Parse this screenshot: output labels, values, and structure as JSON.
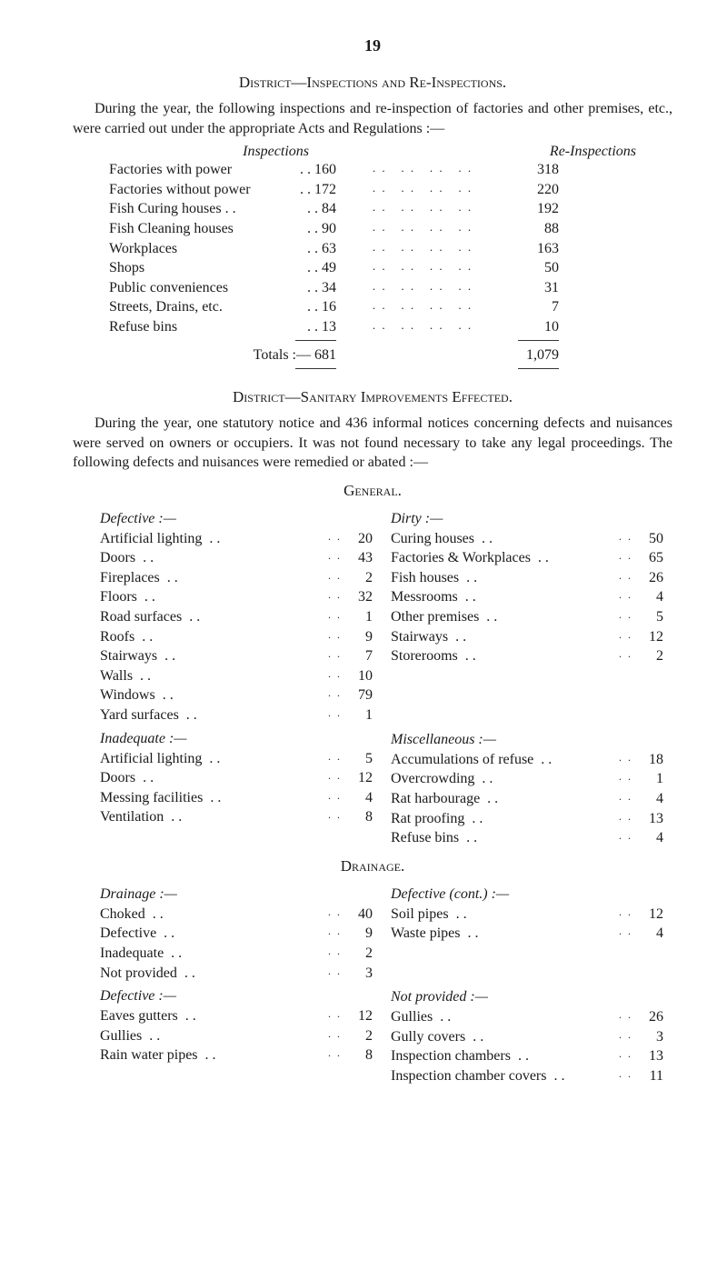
{
  "page_number": "19",
  "section1": {
    "heading": "District—Inspections and Re-Inspections.",
    "para": "During the year, the following inspections and re-inspection of factories and other premises, etc., were carried out under the appropriate Acts and Regulations :—",
    "col1": "Inspections",
    "col2": "Re-Inspections",
    "rows": [
      {
        "label": "Factories with power",
        "v1": "160",
        "v2": "318"
      },
      {
        "label": "Factories without power",
        "v1": "172",
        "v2": "220"
      },
      {
        "label": "Fish Curing houses . .",
        "v1": "84",
        "v2": "192"
      },
      {
        "label": "Fish Cleaning houses",
        "v1": "90",
        "v2": "88"
      },
      {
        "label": "Workplaces",
        "v1": "63",
        "v2": "163"
      },
      {
        "label": "Shops",
        "v1": "49",
        "v2": "50"
      },
      {
        "label": "Public conveniences",
        "v1": "34",
        "v2": "31"
      },
      {
        "label": "Streets, Drains, etc.",
        "v1": "16",
        "v2": "7"
      },
      {
        "label": "Refuse bins",
        "v1": "13",
        "v2": "10"
      }
    ],
    "totals_label": "Totals :— 681",
    "totals_v2": "1,079"
  },
  "section2": {
    "heading": "District—Sanitary Improvements Effected.",
    "para": "During the year, one statutory notice and 436 informal notices concerning defects and nuisances were served on owners or occupiers. It was not found necessary to take any legal proceedings. The following defects and nuisances were remedied or abated :—"
  },
  "general": {
    "heading": "General.",
    "left": [
      {
        "head": "Defective :—"
      },
      {
        "label": "Artificial lighting",
        "v": "20"
      },
      {
        "label": "Doors",
        "v": "43"
      },
      {
        "label": "Fireplaces",
        "v": "2"
      },
      {
        "label": "Floors",
        "v": "32"
      },
      {
        "label": "Road surfaces",
        "v": "1"
      },
      {
        "label": "Roofs",
        "v": "9"
      },
      {
        "label": "Stairways",
        "v": "7"
      },
      {
        "label": "Walls",
        "v": "10"
      },
      {
        "label": "Windows",
        "v": "79"
      },
      {
        "label": "Yard surfaces",
        "v": "1"
      },
      {
        "head": "Inadequate :—"
      },
      {
        "label": "Artificial lighting",
        "v": "5"
      },
      {
        "label": "Doors",
        "v": "12"
      },
      {
        "label": "Messing facilities",
        "v": "4"
      },
      {
        "label": "Ventilation",
        "v": "8"
      }
    ],
    "right": [
      {
        "head": "Dirty :—"
      },
      {
        "label": "Curing houses",
        "v": "50"
      },
      {
        "label": "Factories & Workplaces",
        "v": "65"
      },
      {
        "label": "Fish houses",
        "v": "26"
      },
      {
        "label": "Messrooms",
        "v": "4"
      },
      {
        "label": "Other premises",
        "v": "5"
      },
      {
        "label": "Stairways",
        "v": "12"
      },
      {
        "label": "Storerooms",
        "v": "2"
      },
      {
        "spacer": true
      },
      {
        "spacer": true
      },
      {
        "spacer": true
      },
      {
        "head": "Miscellaneous :—"
      },
      {
        "label": "Accumulations of refuse",
        "v": "18"
      },
      {
        "label": "Overcrowding",
        "v": "1"
      },
      {
        "label": "Rat harbourage",
        "v": "4"
      },
      {
        "label": "Rat proofing",
        "v": "13"
      },
      {
        "label": "Refuse bins",
        "v": "4"
      }
    ]
  },
  "drainage": {
    "heading": "Drainage.",
    "left": [
      {
        "head": "Drainage :—"
      },
      {
        "label": "Choked",
        "v": "40"
      },
      {
        "label": "Defective",
        "v": "9"
      },
      {
        "label": "Inadequate",
        "v": "2"
      },
      {
        "label": "Not provided",
        "v": "3"
      },
      {
        "head": "Defective :—"
      },
      {
        "label": "Eaves gutters",
        "v": "12"
      },
      {
        "label": "Gullies",
        "v": "2"
      },
      {
        "label": "Rain water pipes",
        "v": "8"
      }
    ],
    "right": [
      {
        "head": "Defective (cont.) :—"
      },
      {
        "label": "Soil pipes",
        "v": "12"
      },
      {
        "label": "Waste pipes",
        "v": "4"
      },
      {
        "spacer": true
      },
      {
        "spacer": true
      },
      {
        "head": "Not provided :—"
      },
      {
        "label": "Gullies",
        "v": "26"
      },
      {
        "label": "Gully covers",
        "v": "3"
      },
      {
        "label": "Inspection chambers",
        "v": "13"
      },
      {
        "label": "Inspection chamber covers",
        "v": "11"
      }
    ]
  }
}
